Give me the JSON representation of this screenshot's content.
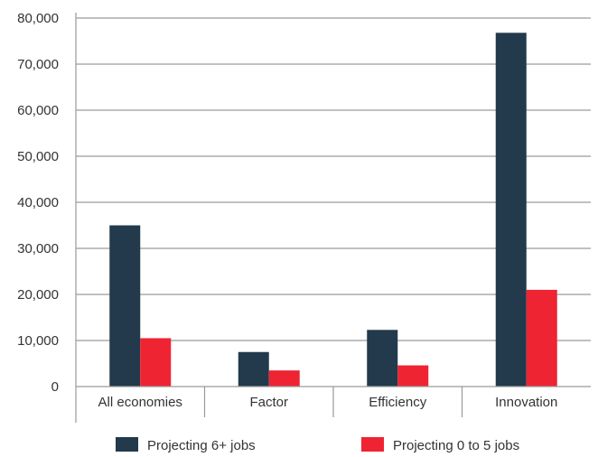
{
  "chart_data": {
    "type": "bar",
    "categories": [
      "All economies",
      "Factor",
      "Efficiency",
      "Innovation"
    ],
    "series": [
      {
        "name": "Projecting 6+ jobs",
        "values": [
          35000,
          7500,
          12300,
          76800
        ]
      },
      {
        "name": "Projecting 0 to 5 jobs",
        "values": [
          10500,
          3500,
          4600,
          21000
        ]
      }
    ],
    "ylim": [
      0,
      80000
    ],
    "yticks": [
      "0",
      "10,000",
      "20,000",
      "30,000",
      "40,000",
      "50,000",
      "60,000",
      "70,000",
      "80,000"
    ],
    "grid": true,
    "legend_position": "bottom",
    "colors": [
      "#223a4b",
      "#ee2433"
    ],
    "axis_color": "#9a9a9a",
    "text_color": "#333333"
  }
}
